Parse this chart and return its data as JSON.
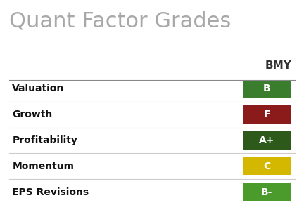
{
  "title": "Quant Factor Grades",
  "title_color": "#a8a8a8",
  "title_fontsize": 22,
  "column_header": "BMY",
  "column_header_color": "#333333",
  "column_header_fontsize": 11,
  "background_color": "#ffffff",
  "factors": [
    "Valuation",
    "Growth",
    "Profitability",
    "Momentum",
    "EPS Revisions"
  ],
  "grades": [
    "B",
    "F",
    "A+",
    "C",
    "B-"
  ],
  "grade_colors": [
    "#3a7d2c",
    "#8b1a1a",
    "#2d5a1b",
    "#d4b800",
    "#4a9a2c"
  ],
  "grade_text_colors": [
    "#ffffff",
    "#ffffff",
    "#ffffff",
    "#ffffff",
    "#ffffff"
  ],
  "factor_fontsize": 10,
  "grade_fontsize": 10,
  "separator_color": "#cccccc",
  "factor_label_color": "#111111",
  "header_line_color": "#888888"
}
